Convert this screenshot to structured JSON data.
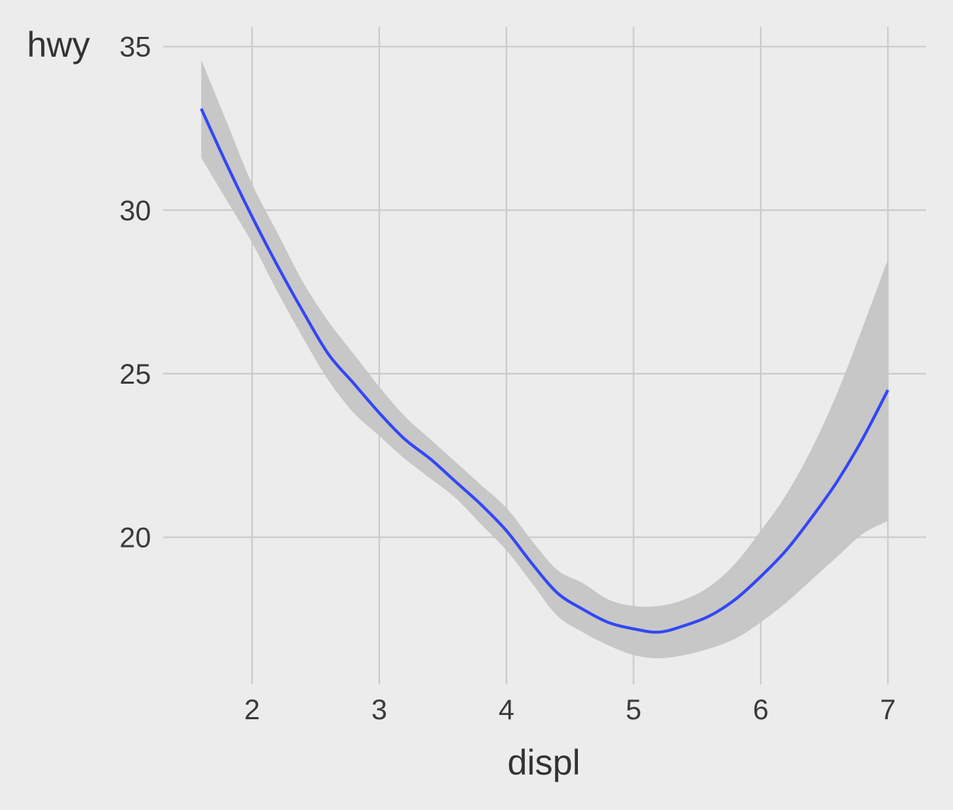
{
  "chart_data": {
    "type": "line",
    "title": "",
    "xlabel": "displ",
    "ylabel": "hwy",
    "xlim": [
      1.3,
      7.3
    ],
    "ylim": [
      15.5,
      35.6
    ],
    "x_ticks": [
      2,
      3,
      4,
      5,
      6,
      7
    ],
    "y_ticks": [
      20,
      25,
      30,
      35
    ],
    "x_tick_labels": [
      "2",
      "3",
      "4",
      "5",
      "6",
      "7"
    ],
    "y_tick_labels": [
      "20",
      "25",
      "30",
      "35"
    ],
    "grid": true,
    "legend": "none",
    "colors": {
      "background": "#ececec",
      "grid": "#cbcbcb",
      "line": "#3347f5",
      "ribbon": "#c5c5c5"
    },
    "series": [
      {
        "x": [
          1.6,
          1.8,
          2.0,
          2.2,
          2.4,
          2.6,
          2.8,
          3.0,
          3.2,
          3.4,
          3.6,
          3.8,
          4.0,
          4.2,
          4.4,
          4.6,
          4.8,
          5.0,
          5.2,
          5.4,
          5.6,
          5.8,
          6.0,
          6.2,
          6.4,
          6.6,
          6.8,
          7.0
        ],
        "y": [
          33.1,
          31.4,
          29.8,
          28.3,
          26.9,
          25.6,
          24.7,
          23.8,
          23.0,
          22.4,
          21.7,
          21.0,
          20.2,
          19.2,
          18.3,
          17.8,
          17.4,
          17.2,
          17.1,
          17.3,
          17.6,
          18.1,
          18.8,
          19.6,
          20.6,
          21.7,
          23.0,
          24.5
        ],
        "ymin": [
          31.6,
          30.3,
          29.0,
          27.5,
          26.1,
          24.8,
          23.8,
          23.1,
          22.4,
          21.8,
          21.2,
          20.4,
          19.6,
          18.6,
          17.6,
          17.1,
          16.7,
          16.4,
          16.3,
          16.4,
          16.6,
          16.9,
          17.4,
          18.0,
          18.7,
          19.4,
          20.1,
          20.5
        ],
        "ymax": [
          34.6,
          32.7,
          30.8,
          29.3,
          27.8,
          26.6,
          25.6,
          24.6,
          23.7,
          23.0,
          22.3,
          21.6,
          20.9,
          19.9,
          19.0,
          18.6,
          18.1,
          17.9,
          17.9,
          18.1,
          18.5,
          19.2,
          20.2,
          21.3,
          22.7,
          24.4,
          26.4,
          28.5
        ]
      }
    ]
  }
}
